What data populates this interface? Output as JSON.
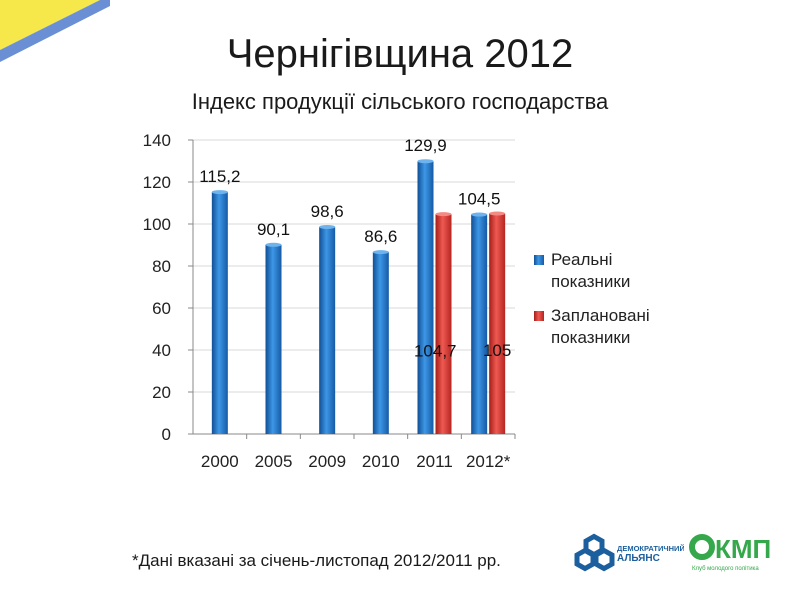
{
  "slide": {
    "title": "Чернігівщина 2012",
    "subtitle": "Індекс продукції сільського господарства",
    "footnote": "*Дані вказані за січень-листопад 2012/2011 рр."
  },
  "logos": {
    "left": {
      "line1": "ДЕМОКРАТИЧНИЙ",
      "line2": "АЛЬЯНС",
      "icon": "hexagon-chain-icon"
    },
    "right": {
      "mark": "КМП",
      "caption": "Клуб молодого політика",
      "icon": "circle-logo-icon"
    }
  },
  "colors": {
    "real": "#1f77c8",
    "planned": "#e03a32",
    "axis": "#888888",
    "grid": "#d9d9d9",
    "stripe_yellow": "#f6e84a",
    "stripe_blue": "#6b8fd4",
    "logo_blue": "#1b5f9e",
    "logo_green": "#34a84a"
  },
  "chart_data": {
    "type": "bar",
    "categories": [
      "2000",
      "2005",
      "2009",
      "2010",
      "2011",
      "2012*"
    ],
    "ylim": [
      0,
      140
    ],
    "yticks": [
      "0",
      "20",
      "40",
      "60",
      "80",
      "100",
      "120",
      "140"
    ],
    "grid": true,
    "legend": "right",
    "series": [
      {
        "name": "Реальні показники",
        "values": [
          115.2,
          90.1,
          98.6,
          86.6,
          129.9,
          104.5
        ],
        "labels": [
          "115,2",
          "90,1",
          "98,6",
          "86,6",
          "129,9",
          "104,5"
        ]
      },
      {
        "name": "Заплановані показники",
        "values": [
          null,
          null,
          null,
          null,
          104.7,
          105
        ],
        "labels": [
          "",
          "",
          "",
          "",
          "104,7",
          "105"
        ]
      }
    ]
  }
}
